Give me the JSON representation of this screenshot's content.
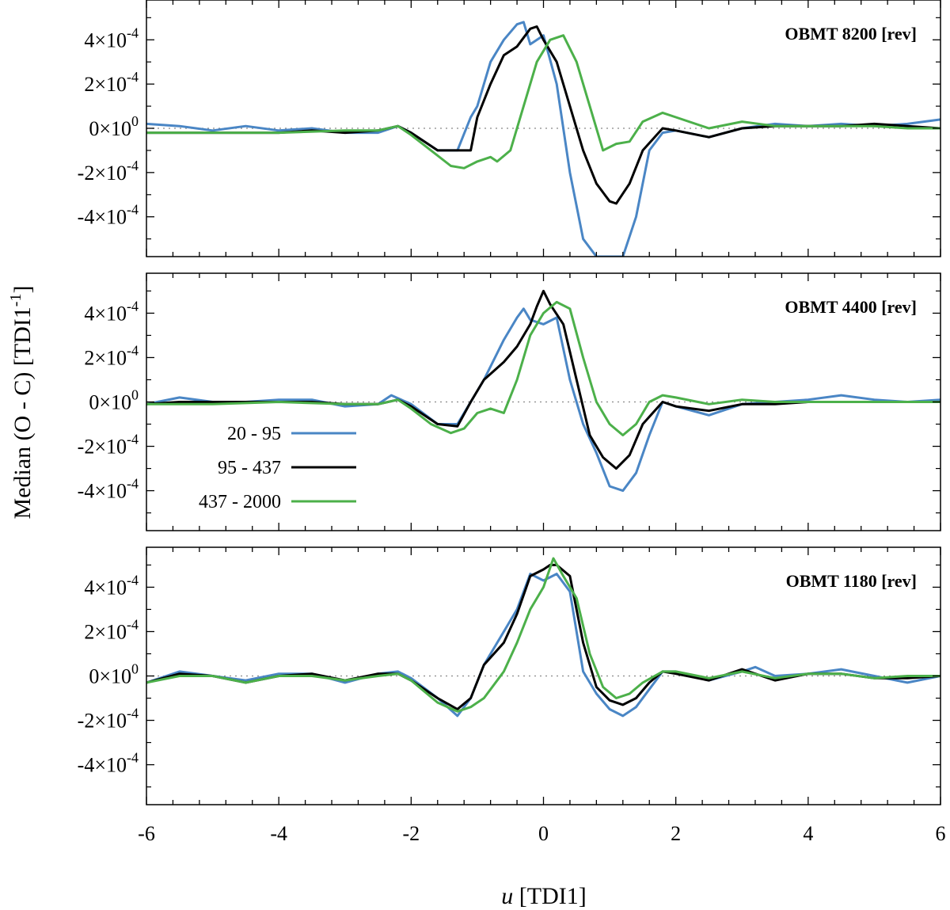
{
  "chart_data": {
    "type": "line",
    "ylabel_main": "Median (O - C) [TDI1",
    "ylabel_sup": "-1",
    "ylabel_end": "]",
    "xlabel_var": "u",
    "xlabel_unit": " [TDI1]",
    "xlim": [
      -6,
      6
    ],
    "ylim": [
      -0.00058,
      0.00058
    ],
    "xticks": [
      -6,
      -4,
      -2,
      0,
      2,
      4,
      6
    ],
    "xticklabels": [
      "-6",
      "-4",
      "-2",
      "0",
      "2",
      "4",
      "6"
    ],
    "yticks": [
      0.0004,
      0.0002,
      0,
      -0.0002,
      -0.0004
    ],
    "ytick_mantissas": [
      "4×10",
      "2×10",
      "0×10",
      "-2×10",
      "-4×10"
    ],
    "ytick_exponents": [
      "-4",
      "-4",
      "0",
      "-4",
      "-4"
    ],
    "legend": [
      {
        "label": "20 - 95",
        "color": "#4a86c5"
      },
      {
        "label": "95 - 437",
        "color": "#000000"
      },
      {
        "label": "437 - 2000",
        "color": "#4cb04a"
      }
    ],
    "colors": {
      "blue": "#4a86c5",
      "black": "#000000",
      "green": "#4cb04a",
      "zeroline": "#888888"
    },
    "panels": [
      {
        "title": "OBMT 8200 [rev]",
        "series": [
          {
            "name": "20 - 95",
            "x": [
              -6,
              -5.5,
              -5,
              -4.5,
              -4,
              -3.5,
              -3,
              -2.5,
              -2.2,
              -2,
              -1.6,
              -1.3,
              -1.1,
              -1,
              -0.8,
              -0.6,
              -0.4,
              -0.3,
              -0.2,
              0,
              0.2,
              0.4,
              0.6,
              0.8,
              1,
              1.2,
              1.4,
              1.6,
              1.8,
              2,
              2.5,
              3,
              3.5,
              4,
              4.5,
              5,
              5.5,
              6
            ],
            "y": [
              2e-05,
              1e-05,
              -1e-05,
              1e-05,
              -1e-05,
              0,
              -2e-05,
              -2e-05,
              1e-05,
              -2e-05,
              -0.0001,
              -0.0001,
              5e-05,
              0.0001,
              0.0003,
              0.0004,
              0.00047,
              0.00048,
              0.00038,
              0.00042,
              0.0002,
              -0.0002,
              -0.0005,
              -0.00058,
              -0.00058,
              -0.00058,
              -0.0004,
              -0.0001,
              -2e-05,
              -1e-05,
              -4e-05,
              0,
              2e-05,
              1e-05,
              2e-05,
              1e-05,
              2e-05,
              4e-05
            ]
          },
          {
            "name": "95 - 437",
            "x": [
              -6,
              -5.5,
              -5,
              -4.5,
              -4,
              -3.5,
              -3,
              -2.5,
              -2.2,
              -2,
              -1.6,
              -1.3,
              -1.1,
              -1,
              -0.8,
              -0.6,
              -0.4,
              -0.2,
              -0.1,
              0,
              0.2,
              0.4,
              0.6,
              0.8,
              1,
              1.1,
              1.3,
              1.5,
              1.8,
              2,
              2.5,
              3,
              3.5,
              4,
              4.5,
              5,
              5.5,
              6
            ],
            "y": [
              -2e-05,
              -2e-05,
              -2e-05,
              -2e-05,
              -2e-05,
              -1e-05,
              -2e-05,
              -1e-05,
              1e-05,
              -2e-05,
              -0.0001,
              -0.0001,
              -0.0001,
              5e-05,
              0.0002,
              0.00033,
              0.00037,
              0.00045,
              0.00046,
              0.0004,
              0.0003,
              0.0001,
              -0.0001,
              -0.00025,
              -0.00033,
              -0.00034,
              -0.00025,
              -0.0001,
              0,
              -1e-05,
              -4e-05,
              0,
              1e-05,
              1e-05,
              1e-05,
              2e-05,
              1e-05,
              0
            ]
          },
          {
            "name": "437 - 2000",
            "x": [
              -6,
              -5,
              -4,
              -3,
              -2.5,
              -2.2,
              -2,
              -1.7,
              -1.4,
              -1.2,
              -1,
              -0.8,
              -0.7,
              -0.5,
              -0.3,
              -0.1,
              0.1,
              0.3,
              0.5,
              0.7,
              0.9,
              1.1,
              1.3,
              1.5,
              1.8,
              2,
              2.5,
              3,
              3.5,
              4,
              4.5,
              5,
              5.5,
              6
            ],
            "y": [
              -2e-05,
              -2e-05,
              -2e-05,
              -1e-05,
              -1e-05,
              1e-05,
              -3e-05,
              -0.0001,
              -0.00017,
              -0.00018,
              -0.00015,
              -0.00013,
              -0.00015,
              -0.0001,
              0.0001,
              0.0003,
              0.0004,
              0.00042,
              0.0003,
              0.0001,
              -0.0001,
              -7e-05,
              -6e-05,
              3e-05,
              7e-05,
              5e-05,
              0,
              3e-05,
              1e-05,
              1e-05,
              1e-05,
              1e-05,
              0,
              0
            ]
          }
        ]
      },
      {
        "title": "OBMT 4400 [rev]",
        "series": [
          {
            "name": "20 - 95",
            "x": [
              -6,
              -5.5,
              -5,
              -4.5,
              -4,
              -3.5,
              -3,
              -2.5,
              -2.3,
              -2,
              -1.6,
              -1.3,
              -1.1,
              -0.9,
              -0.6,
              -0.4,
              -0.3,
              -0.2,
              0,
              0.2,
              0.4,
              0.6,
              0.8,
              1,
              1.2,
              1.4,
              1.6,
              1.8,
              2,
              2.5,
              3,
              3.5,
              4,
              4.5,
              5,
              5.5,
              6
            ],
            "y": [
              -1e-05,
              2e-05,
              0,
              0,
              1e-05,
              1e-05,
              -2e-05,
              -1e-05,
              3e-05,
              -1e-05,
              -0.0001,
              -0.0001,
              0,
              0.0001,
              0.00028,
              0.00038,
              0.00042,
              0.00037,
              0.00035,
              0.00038,
              0.0001,
              -0.0001,
              -0.00023,
              -0.00038,
              -0.0004,
              -0.00032,
              -0.00015,
              0,
              -2e-05,
              -6e-05,
              -1e-05,
              0,
              1e-05,
              3e-05,
              1e-05,
              0,
              1e-05
            ]
          },
          {
            "name": "95 - 437",
            "x": [
              -6,
              -5.5,
              -5,
              -4.5,
              -4,
              -3.5,
              -3,
              -2.5,
              -2.2,
              -2,
              -1.6,
              -1.3,
              -1.1,
              -0.9,
              -0.6,
              -0.4,
              -0.2,
              -0.1,
              0,
              0.1,
              0.3,
              0.5,
              0.7,
              0.9,
              1.1,
              1.3,
              1.5,
              1.8,
              2,
              2.5,
              3,
              3.5,
              4,
              4.5,
              5,
              5.5,
              6
            ],
            "y": [
              -1e-05,
              0,
              0,
              0,
              0,
              0,
              -1e-05,
              -1e-05,
              1e-05,
              -2e-05,
              -0.0001,
              -0.00011,
              0,
              0.0001,
              0.00018,
              0.00025,
              0.00035,
              0.00043,
              0.0005,
              0.00044,
              0.00035,
              0.0001,
              -0.00015,
              -0.00025,
              -0.0003,
              -0.00024,
              -0.0001,
              0,
              -2e-05,
              -4e-05,
              -1e-05,
              -1e-05,
              0,
              0,
              0,
              0,
              0
            ]
          },
          {
            "name": "437 - 2000",
            "x": [
              -6,
              -5,
              -4,
              -3,
              -2.5,
              -2.2,
              -2,
              -1.7,
              -1.4,
              -1.2,
              -1,
              -0.8,
              -0.6,
              -0.4,
              -0.2,
              0,
              0.2,
              0.4,
              0.6,
              0.8,
              1,
              1.2,
              1.4,
              1.6,
              1.8,
              2,
              2.5,
              3,
              3.5,
              4,
              4.5,
              5,
              5.5,
              6
            ],
            "y": [
              -1e-05,
              -1e-05,
              0,
              -1e-05,
              -1e-05,
              1e-05,
              -3e-05,
              -0.0001,
              -0.00014,
              -0.00012,
              -5e-05,
              -3e-05,
              -5e-05,
              0.0001,
              0.0003,
              0.0004,
              0.00045,
              0.00042,
              0.0002,
              0,
              -0.0001,
              -0.00015,
              -0.0001,
              0,
              3e-05,
              2e-05,
              -1e-05,
              1e-05,
              0,
              0,
              0,
              0,
              0,
              0
            ]
          }
        ]
      },
      {
        "title": "OBMT 1180 [rev]",
        "series": [
          {
            "name": "20 - 95",
            "x": [
              -6,
              -5.5,
              -5,
              -4.5,
              -4,
              -3.5,
              -3,
              -2.5,
              -2.2,
              -2,
              -1.6,
              -1.3,
              -1.1,
              -0.9,
              -0.6,
              -0.4,
              -0.2,
              0,
              0.2,
              0.4,
              0.6,
              0.8,
              1,
              1.2,
              1.4,
              1.6,
              1.8,
              2,
              2.5,
              3,
              3.2,
              3.5,
              4,
              4.5,
              5,
              5.5,
              6
            ],
            "y": [
              -3e-05,
              2e-05,
              0,
              -2e-05,
              1e-05,
              1e-05,
              -3e-05,
              1e-05,
              2e-05,
              -1e-05,
              -0.0001,
              -0.00018,
              -0.0001,
              5e-05,
              0.0002,
              0.0003,
              0.00046,
              0.00043,
              0.00046,
              0.00038,
              2e-05,
              -8e-05,
              -0.00015,
              -0.00018,
              -0.00014,
              -6e-05,
              2e-05,
              2e-05,
              -2e-05,
              2e-05,
              4e-05,
              0,
              1e-05,
              3e-05,
              0,
              -3e-05,
              0
            ]
          },
          {
            "name": "95 - 437",
            "x": [
              -6,
              -5.5,
              -5,
              -4.5,
              -4,
              -3.5,
              -3,
              -2.5,
              -2.2,
              -2,
              -1.6,
              -1.3,
              -1.1,
              -0.9,
              -0.6,
              -0.4,
              -0.2,
              0,
              0.1,
              0.2,
              0.4,
              0.6,
              0.8,
              1,
              1.2,
              1.4,
              1.6,
              1.8,
              2,
              2.5,
              3,
              3.5,
              4,
              4.5,
              5,
              5.5,
              6
            ],
            "y": [
              -3e-05,
              1e-05,
              0,
              -3e-05,
              0,
              1e-05,
              -2e-05,
              1e-05,
              1e-05,
              -2e-05,
              -0.0001,
              -0.00015,
              -0.0001,
              5e-05,
              0.00015,
              0.00028,
              0.00045,
              0.00048,
              0.0005,
              0.0005,
              0.00045,
              0.00015,
              -5e-05,
              -0.00011,
              -0.00013,
              -0.0001,
              -3e-05,
              2e-05,
              1e-05,
              -2e-05,
              3e-05,
              -2e-05,
              1e-05,
              1e-05,
              -1e-05,
              -1e-05,
              0
            ]
          },
          {
            "name": "437 - 2000",
            "x": [
              -6,
              -5.5,
              -5,
              -4.5,
              -4,
              -3.5,
              -3,
              -2.5,
              -2.2,
              -2,
              -1.6,
              -1.3,
              -1.1,
              -0.9,
              -0.6,
              -0.4,
              -0.2,
              0,
              0.15,
              0.3,
              0.5,
              0.7,
              0.9,
              1.1,
              1.3,
              1.5,
              1.8,
              2,
              2.5,
              3,
              3.5,
              4,
              4.5,
              5,
              5.5,
              6
            ],
            "y": [
              -3e-05,
              0,
              0,
              -3e-05,
              0,
              0,
              -2e-05,
              0,
              1e-05,
              -2e-05,
              -0.00012,
              -0.00016,
              -0.00014,
              -0.0001,
              2e-05,
              0.00015,
              0.0003,
              0.0004,
              0.00053,
              0.00045,
              0.00035,
              0.0001,
              -5e-05,
              -0.0001,
              -8e-05,
              -3e-05,
              2e-05,
              2e-05,
              -1e-05,
              2e-05,
              -1e-05,
              1e-05,
              1e-05,
              -1e-05,
              0,
              0
            ]
          }
        ]
      }
    ]
  }
}
